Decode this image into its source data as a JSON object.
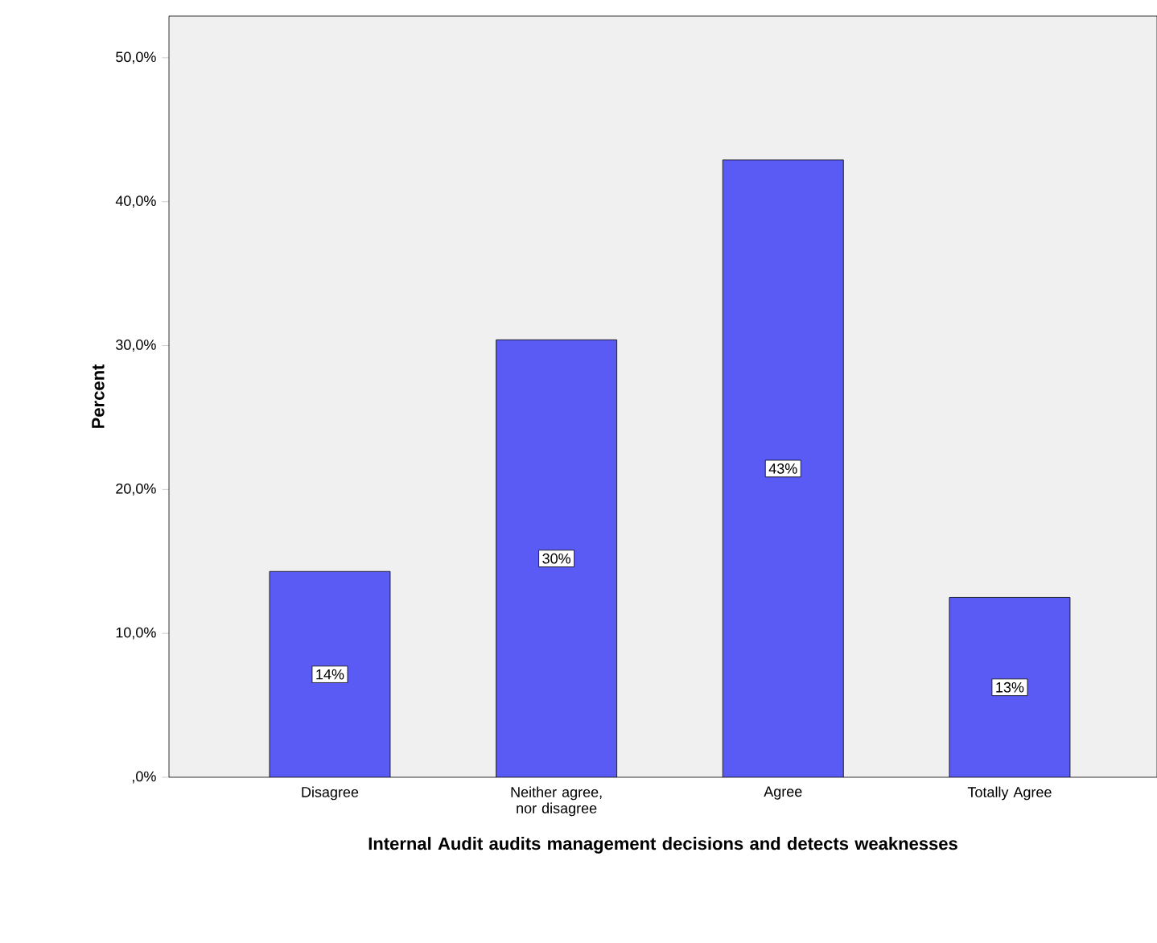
{
  "chart_data": {
    "type": "bar",
    "xlabel": "Internal Audit audits management decisions and detects weaknesses",
    "ylabel": "Percent",
    "categories": [
      "Disagree",
      "Neither agree, nor disagree",
      "Agree",
      "Totally Agree"
    ],
    "values": [
      14.3,
      30.4,
      42.9,
      12.5
    ],
    "value_labels": [
      "14%",
      "30%",
      "43%",
      "13%"
    ],
    "color": "#5a5af5",
    "ylim": [
      0,
      52.9
    ],
    "yticks": [
      {
        "value": 0,
        "label": ",0%"
      },
      {
        "value": 10,
        "label": "10,0%"
      },
      {
        "value": 20,
        "label": "20,0%"
      },
      {
        "value": 30,
        "label": "30,0%"
      },
      {
        "value": 40,
        "label": "40,0%"
      },
      {
        "value": 50,
        "label": "50,0%"
      }
    ]
  }
}
